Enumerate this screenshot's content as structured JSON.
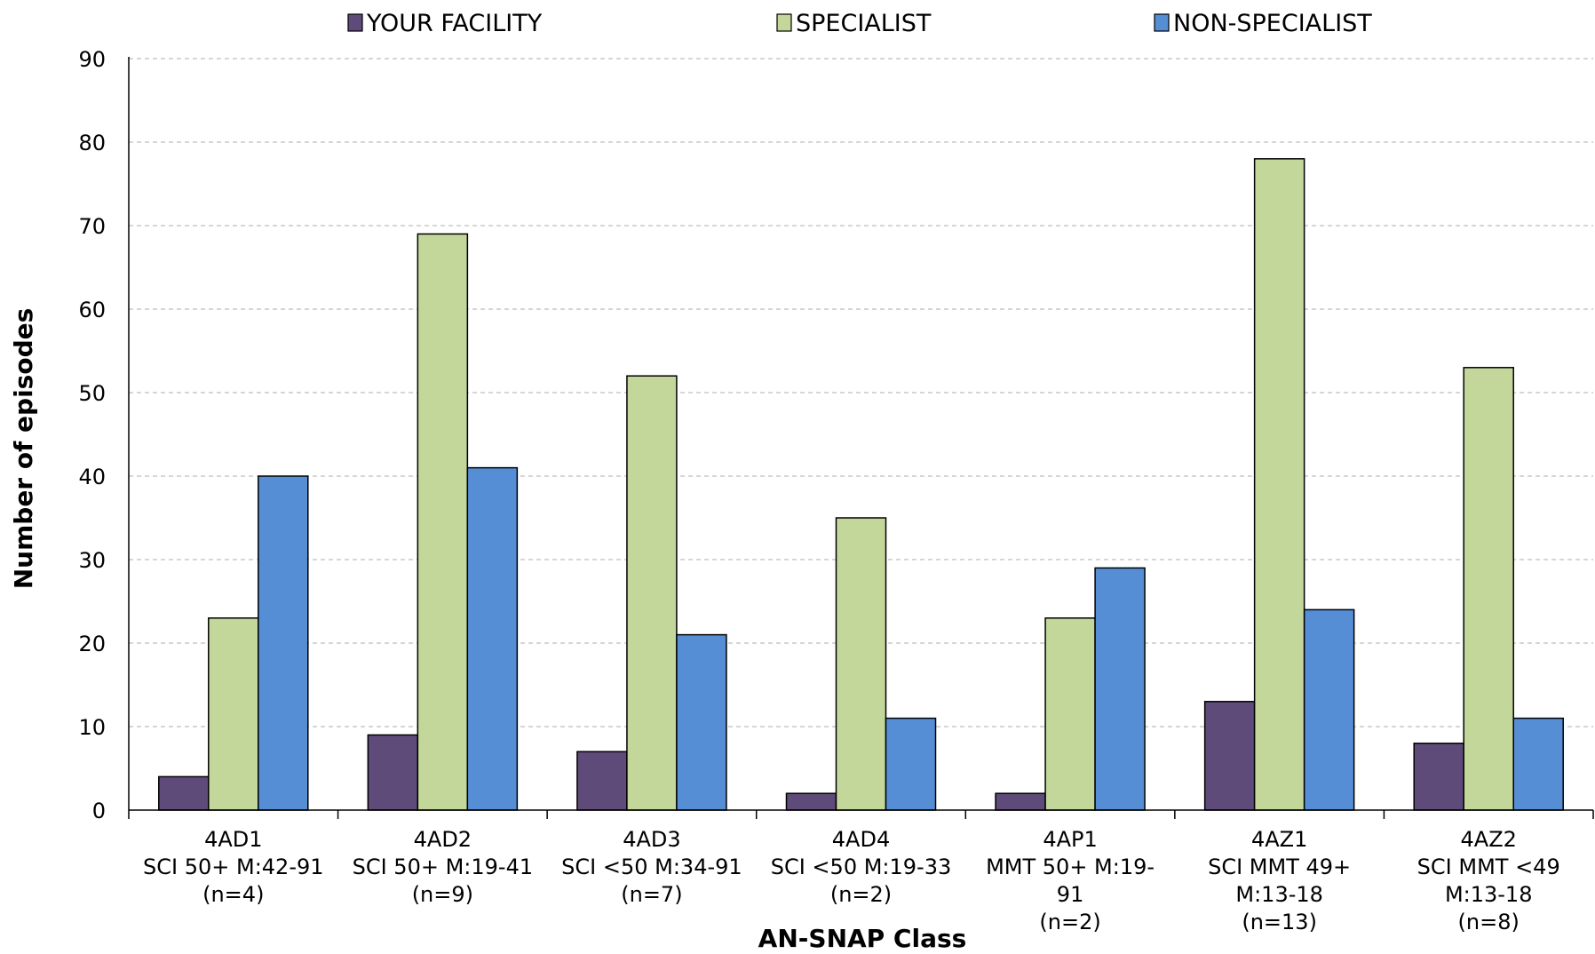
{
  "chart_data": {
    "type": "bar",
    "title": "",
    "xlabel": "AN-SNAP Class",
    "ylabel": "Number of episodes",
    "ylim": [
      0,
      90
    ],
    "yticks": [
      0,
      10,
      20,
      30,
      40,
      50,
      60,
      70,
      80,
      90
    ],
    "grid": true,
    "legend_position": "top",
    "categories": [
      [
        "4AD1",
        "SCI 50+ M:42-91",
        "(n=4)"
      ],
      [
        "4AD2",
        "SCI 50+ M:19-41",
        "(n=9)"
      ],
      [
        "4AD3",
        "SCI <50 M:34-91",
        "(n=7)"
      ],
      [
        "4AD4",
        "SCI <50 M:19-33",
        "(n=2)"
      ],
      [
        "4AP1",
        "MMT 50+ M:19-",
        "91",
        "(n=2)"
      ],
      [
        "4AZ1",
        "SCI MMT 49+",
        "M:13-18",
        "(n=13)"
      ],
      [
        "4AZ2",
        "SCI MMT <49",
        "M:13-18",
        "(n=8)"
      ]
    ],
    "series": [
      {
        "name": "YOUR FACILITY",
        "color": "#5f4b7a",
        "values": [
          4,
          9,
          7,
          2,
          2,
          13,
          8
        ]
      },
      {
        "name": "SPECIALIST",
        "color": "#c4d79b",
        "values": [
          23,
          69,
          52,
          35,
          23,
          78,
          53
        ]
      },
      {
        "name": "NON-SPECIALIST",
        "color": "#558ed5",
        "values": [
          40,
          41,
          21,
          11,
          29,
          24,
          11
        ]
      }
    ]
  }
}
